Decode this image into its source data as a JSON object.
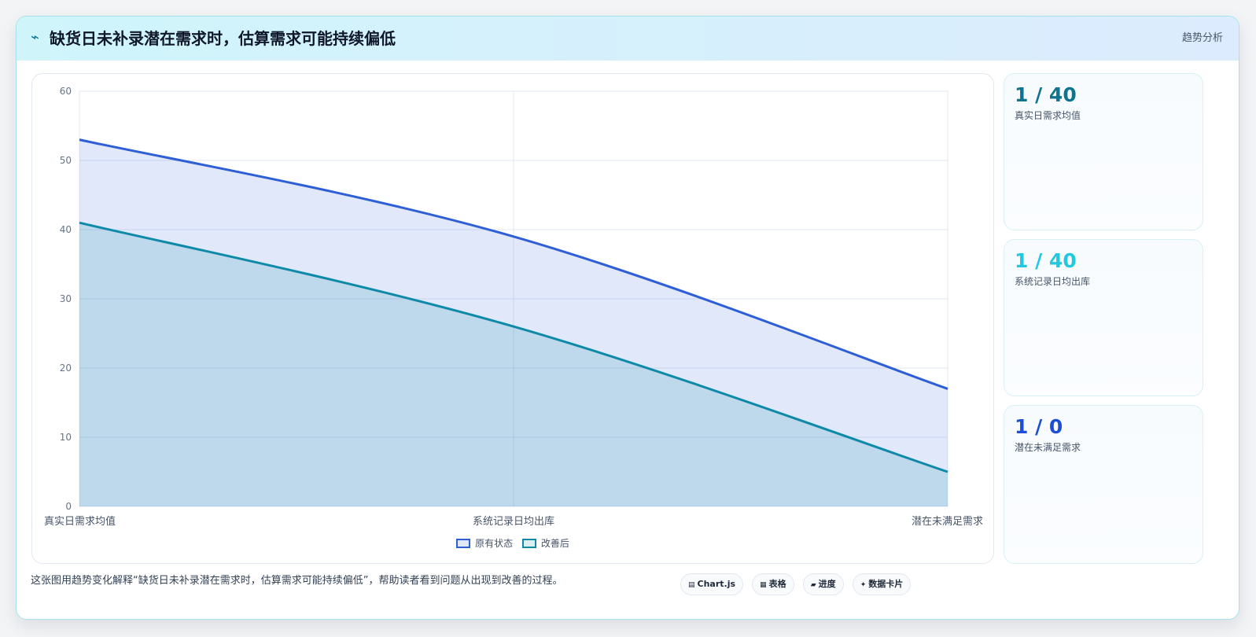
{
  "header": {
    "title": "缺货日未补录潜在需求时，估算需求可能持续偏低",
    "tag": "趋势分析",
    "icon": "pulse-line-icon"
  },
  "chart_data": {
    "type": "area",
    "categories": [
      "真实日需求均值",
      "系统记录日均出库",
      "潜在未满足需求"
    ],
    "series": [
      {
        "name": "原有状态",
        "values": [
          53,
          39,
          17
        ],
        "color": "#2f5fd6"
      },
      {
        "name": "改善后",
        "values": [
          41,
          26,
          5
        ],
        "color": "#0e8aa8"
      }
    ],
    "ylim": [
      0,
      60
    ],
    "yticks": [
      0,
      10,
      20,
      30,
      40,
      50,
      60
    ],
    "grid": true,
    "legend": "bottom"
  },
  "stats": [
    {
      "value": "1 / 40",
      "label": "真实日需求均值",
      "color": "#0e7490"
    },
    {
      "value": "1 / 40",
      "label": "系统记录日均出库",
      "color": "#22c7e0"
    },
    {
      "value": "1 / 0",
      "label": "潜在未满足需求",
      "color": "#1d4ed8"
    }
  ],
  "footer": {
    "description": "这张图用趋势变化解释“缺货日未补录潜在需求时，估算需求可能持续偏低”，帮助读者看到问题从出现到改善的过程。",
    "chips": [
      {
        "label": "Chart.js",
        "icon": "chart-icon"
      },
      {
        "label": "表格",
        "icon": "table-icon"
      },
      {
        "label": "进度",
        "icon": "progress-icon"
      },
      {
        "label": "数据卡片",
        "icon": "sparkle-icon"
      }
    ]
  }
}
